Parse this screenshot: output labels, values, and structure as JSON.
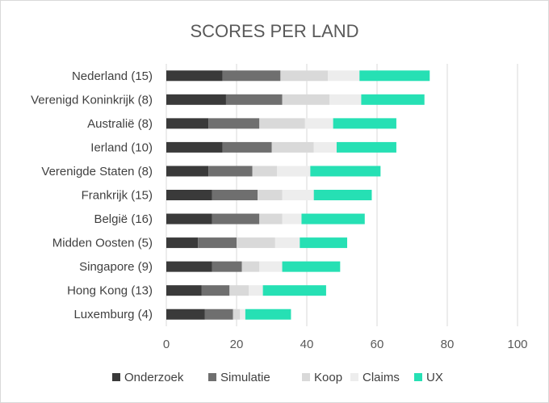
{
  "chart_data": {
    "type": "bar",
    "orientation": "horizontal",
    "stacked": true,
    "title": "SCORES PER LAND",
    "categories": [
      "Nederland (15)",
      "Verenigd Koninkrijk (8)",
      "Australië (8)",
      "Ierland (10)",
      "Verenigde Staten (8)",
      "Frankrijk (15)",
      "België (16)",
      "Midden Oosten (5)",
      "Singapore (9)",
      "Hong Kong (13)",
      "Luxemburg (4)"
    ],
    "series": [
      {
        "name": "Onderzoek",
        "color": "#3a3a3a",
        "values": [
          16,
          17,
          12,
          16,
          12,
          13,
          13,
          9,
          13,
          10,
          11
        ]
      },
      {
        "name": "Simulatie",
        "color": "#6f6f6f",
        "values": [
          16.5,
          16,
          14.5,
          14,
          12.5,
          13,
          13.5,
          11,
          8.5,
          8,
          8
        ]
      },
      {
        "name": "Koop",
        "color": "#d9d9d9",
        "values": [
          13.5,
          13.5,
          13,
          12,
          7,
          7,
          6.5,
          11,
          5,
          5.5,
          2
        ]
      },
      {
        "name": "Claims",
        "color": "#ededed",
        "values": [
          9,
          9,
          8,
          6.5,
          9.5,
          9,
          5.5,
          7,
          6.5,
          4,
          1.5
        ]
      },
      {
        "name": "UX",
        "color": "#26e0b4",
        "values": [
          20,
          18,
          18,
          17,
          20,
          16.5,
          18,
          13.5,
          16.5,
          18,
          13
        ]
      }
    ],
    "xlim": [
      0,
      100
    ],
    "xticks": [
      0,
      20,
      40,
      60,
      80,
      100
    ],
    "grid": "vertical",
    "legend": "bottom"
  }
}
